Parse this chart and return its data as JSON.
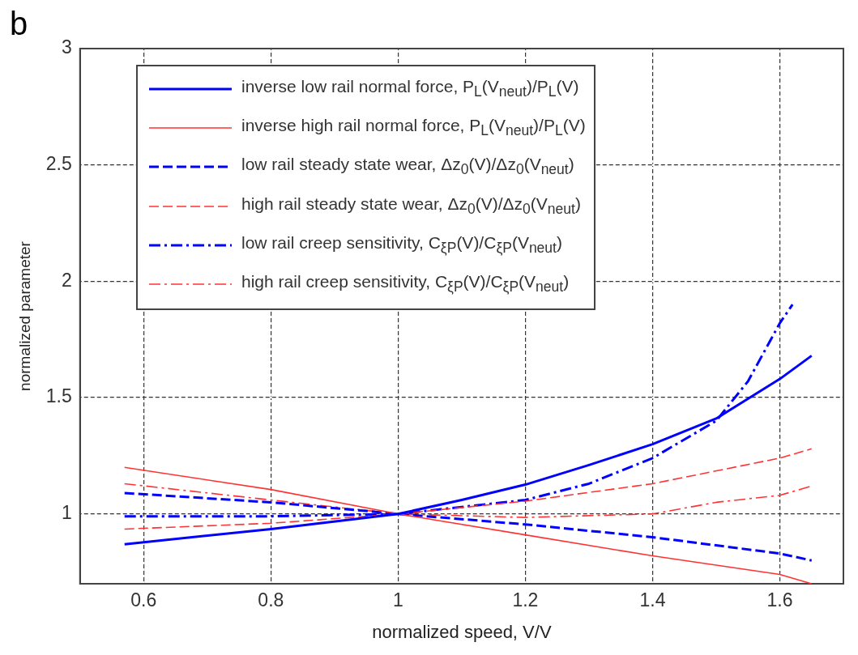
{
  "chart_data": {
    "type": "line",
    "xlabel": "normalized speed, V/V",
    "ylabel": "normalized parameter",
    "annotations": [
      "b"
    ],
    "xlim": [
      0.5,
      1.7
    ],
    "xticks": [
      0.6,
      0.8,
      1,
      1.2,
      1.4,
      1.6
    ],
    "ylim": [
      0.7,
      3
    ],
    "yticks": [
      1,
      1.5,
      2,
      2.5,
      3
    ],
    "grid": true,
    "legend": "top left",
    "marker": "none",
    "series": [
      {
        "name": "inverse low rail normal force, P$_{L}$(V$_{neut}$)/P$_{L}$(V)",
        "color": "#0000ff",
        "line_style": "solid",
        "x": [
          0.57,
          0.8,
          1,
          1.1,
          1.2,
          1.3,
          1.4,
          1.5,
          1.6,
          1.65
        ],
        "values": [
          0.87,
          0.935,
          1,
          1.06,
          1.126,
          1.21,
          1.3,
          1.41,
          1.58,
          1.68
        ]
      },
      {
        "name": "inverse high rail normal force, P$_{L}$(V$_{neut}$)/P$_{L}$(V)",
        "color": "#ff3333",
        "line_style": "solid",
        "x": [
          0.57,
          0.8,
          1,
          1.2,
          1.4,
          1.6,
          1.65
        ],
        "values": [
          1.2,
          1.105,
          1,
          0.91,
          0.82,
          0.74,
          0.7
        ]
      },
      {
        "name": "low rail steady state wear, Δz$_{0}$(V)/Δz$_{0}$(V$_{neut}$)",
        "color": "#0000ff",
        "line_style": "dashed",
        "x": [
          0.57,
          0.8,
          1,
          1.2,
          1.4,
          1.6,
          1.65
        ],
        "values": [
          1.09,
          1.05,
          1,
          0.955,
          0.9,
          0.83,
          0.8
        ]
      },
      {
        "name": "high rail steady state wear, Δz$_{0}$(V)/Δz$_{0}$(V$_{neut}$)",
        "color": "#ff3333",
        "line_style": "dashed",
        "x": [
          0.57,
          0.8,
          1,
          1.2,
          1.4,
          1.6,
          1.65
        ],
        "values": [
          0.935,
          0.96,
          1,
          1.055,
          1.13,
          1.24,
          1.28
        ]
      },
      {
        "name": "low rail creep sensitivity, C$_{ξP}$(V)/C$_{ξP}$(V$_{neut}$)",
        "color": "#0000ff",
        "line_style": "dashdot",
        "x": [
          0.57,
          0.8,
          1,
          1.2,
          1.3,
          1.4,
          1.5,
          1.55,
          1.6,
          1.62
        ],
        "values": [
          0.99,
          0.99,
          1,
          1.06,
          1.13,
          1.24,
          1.4,
          1.57,
          1.82,
          1.9
        ]
      },
      {
        "name": "high rail creep sensitivity, C$_{ξP}$(V)/C$_{ξP}$(V$_{neut}$)",
        "color": "#ff3333",
        "line_style": "dashdot",
        "x": [
          0.57,
          0.8,
          1,
          1.2,
          1.4,
          1.5,
          1.6,
          1.65
        ],
        "values": [
          1.13,
          1.06,
          1,
          0.985,
          1.0,
          1.05,
          1.08,
          1.12
        ]
      }
    ]
  }
}
